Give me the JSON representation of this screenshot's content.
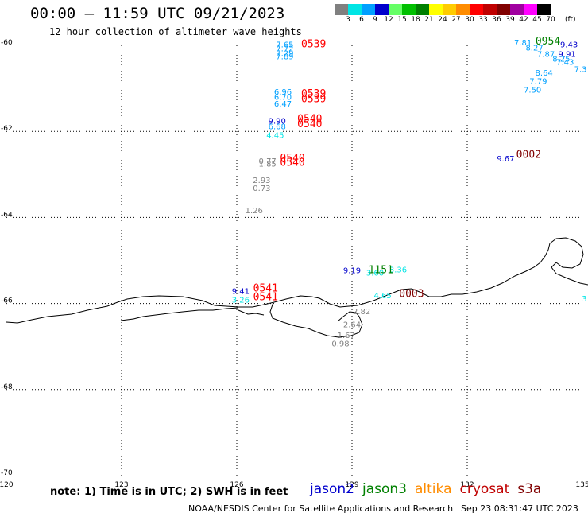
{
  "header": {
    "title": "00:00 – 11:59 UTC 09/21/2023",
    "subtitle": "12 hour collection of altimeter wave heights"
  },
  "legend": {
    "unit": "(ft)",
    "bins": [
      {
        "label": "3",
        "color": "#808080"
      },
      {
        "label": "6",
        "color": "#00e5e5"
      },
      {
        "label": "9",
        "color": "#00a0ff"
      },
      {
        "label": "12",
        "color": "#0000cc"
      },
      {
        "label": "15",
        "color": "#66ff66"
      },
      {
        "label": "18",
        "color": "#00c000"
      },
      {
        "label": "21",
        "color": "#008000"
      },
      {
        "label": "24",
        "color": "#ffff00"
      },
      {
        "label": "27",
        "color": "#ffcc00"
      },
      {
        "label": "30",
        "color": "#ff8c00"
      },
      {
        "label": "33",
        "color": "#ff0000"
      },
      {
        "label": "36",
        "color": "#c00000"
      },
      {
        "label": "39",
        "color": "#800000"
      },
      {
        "label": "42",
        "color": "#a000a0"
      },
      {
        "label": "45",
        "color": "#ff00ff"
      },
      {
        "label": "70",
        "color": "#000000"
      }
    ]
  },
  "map": {
    "lon_ticks": [
      "120",
      "123",
      "126",
      "129",
      "132",
      "135"
    ],
    "lat_ticks": [
      "-60",
      "-62",
      "-64",
      "-66",
      "-68",
      "-70"
    ],
    "observations": [
      {
        "t": "7.65",
        "c": "#00a0ff",
        "lon": 127.25,
        "lat": -60.05
      },
      {
        "t": "7.72",
        "c": "#00a0ff",
        "lon": 127.25,
        "lat": -60.14
      },
      {
        "t": "7.29",
        "c": "#00a0ff",
        "lon": 127.25,
        "lat": -60.25
      },
      {
        "t": "7.89",
        "c": "#00a0ff",
        "lon": 127.25,
        "lat": -60.32
      },
      {
        "t": "6.96",
        "c": "#00a0ff",
        "lon": 127.2,
        "lat": -61.15
      },
      {
        "t": "6.70",
        "c": "#00a0ff",
        "lon": 127.2,
        "lat": -61.27
      },
      {
        "t": "6.47",
        "c": "#00a0ff",
        "lon": 127.2,
        "lat": -61.42
      },
      {
        "t": "9.90",
        "c": "#0000cc",
        "lon": 127.05,
        "lat": -61.82
      },
      {
        "t": "6.68",
        "c": "#00a0ff",
        "lon": 127.05,
        "lat": -61.95
      },
      {
        "t": "4.45",
        "c": "#00e5e5",
        "lon": 127.0,
        "lat": -62.15
      },
      {
        "t": "0.77",
        "c": "#808080",
        "lon": 126.8,
        "lat": -62.75
      },
      {
        "t": "1.85",
        "c": "#808080",
        "lon": 126.8,
        "lat": -62.82
      },
      {
        "t": "2.93",
        "c": "#808080",
        "lon": 126.65,
        "lat": -63.2
      },
      {
        "t": "0.73",
        "c": "#808080",
        "lon": 126.65,
        "lat": -63.38
      },
      {
        "t": "1.26",
        "c": "#808080",
        "lon": 126.45,
        "lat": -63.9
      },
      {
        "t": "9.41",
        "c": "#0000cc",
        "lon": 126.1,
        "lat": -65.78
      },
      {
        "t": "3.26",
        "c": "#00e5e5",
        "lon": 126.1,
        "lat": -65.98
      },
      {
        "t": "9.19",
        "c": "#0000cc",
        "lon": 129.0,
        "lat": -65.3
      },
      {
        "t": "3.60",
        "c": "#00e5e5",
        "lon": 129.6,
        "lat": -65.35
      },
      {
        "t": "3.36",
        "c": "#00e5e5",
        "lon": 130.2,
        "lat": -65.28
      },
      {
        "t": "4.65",
        "c": "#00e5e5",
        "lon": 129.8,
        "lat": -65.88
      },
      {
        "t": "2.82",
        "c": "#808080",
        "lon": 129.25,
        "lat": -66.25
      },
      {
        "t": "2.64",
        "c": "#808080",
        "lon": 129.0,
        "lat": -66.55
      },
      {
        "t": "1.67",
        "c": "#808080",
        "lon": 128.85,
        "lat": -66.8
      },
      {
        "t": "0.98",
        "c": "#808080",
        "lon": 128.7,
        "lat": -67.0
      },
      {
        "t": "9.67",
        "c": "#0000cc",
        "lon": 133.0,
        "lat": -62.7
      },
      {
        "t": "7.81",
        "c": "#00a0ff",
        "lon": 133.45,
        "lat": -60.0
      },
      {
        "t": "8.27",
        "c": "#00a0ff",
        "lon": 133.75,
        "lat": -60.12
      },
      {
        "t": "9.43",
        "c": "#0000cc",
        "lon": 134.65,
        "lat": -60.05
      },
      {
        "t": "7.87",
        "c": "#00a0ff",
        "lon": 134.05,
        "lat": -60.27
      },
      {
        "t": "9.91",
        "c": "#0000cc",
        "lon": 134.6,
        "lat": -60.27
      },
      {
        "t": "8.25",
        "c": "#00a0ff",
        "lon": 134.45,
        "lat": -60.38
      },
      {
        "t": "7.43",
        "c": "#00a0ff",
        "lon": 134.55,
        "lat": -60.45
      },
      {
        "t": "7.3",
        "c": "#00a0ff",
        "lon": 134.95,
        "lat": -60.62
      },
      {
        "t": "8.64",
        "c": "#00a0ff",
        "lon": 134.0,
        "lat": -60.7
      },
      {
        "t": "7.79",
        "c": "#00a0ff",
        "lon": 133.85,
        "lat": -60.9
      },
      {
        "t": "7.50",
        "c": "#00a0ff",
        "lon": 133.7,
        "lat": -61.1
      },
      {
        "t": "3",
        "c": "#00e5e5",
        "lon": 135.05,
        "lat": -65.95
      }
    ],
    "times": [
      {
        "t": "0539",
        "c": "#ff0000",
        "lon": 128.0,
        "lat": -60.05
      },
      {
        "t": "0539",
        "c": "#ff0000",
        "lon": 128.0,
        "lat": -61.2
      },
      {
        "t": "0539",
        "c": "#ff0000",
        "lon": 128.0,
        "lat": -61.32
      },
      {
        "t": "0540",
        "c": "#ff0000",
        "lon": 127.9,
        "lat": -61.78
      },
      {
        "t": "0540",
        "c": "#ff0000",
        "lon": 127.9,
        "lat": -61.9
      },
      {
        "t": "0540",
        "c": "#ff0000",
        "lon": 127.45,
        "lat": -62.7
      },
      {
        "t": "0540",
        "c": "#ff0000",
        "lon": 127.45,
        "lat": -62.8
      },
      {
        "t": "0541",
        "c": "#ff0000",
        "lon": 126.75,
        "lat": -65.72
      },
      {
        "t": "0541",
        "c": "#ff0000",
        "lon": 126.75,
        "lat": -65.92
      },
      {
        "t": "1151",
        "c": "#008000",
        "lon": 129.75,
        "lat": -65.3
      },
      {
        "t": "0003",
        "c": "#800000",
        "lon": 130.55,
        "lat": -65.85
      },
      {
        "t": "0002",
        "c": "#800000",
        "lon": 133.6,
        "lat": -62.62
      },
      {
        "t": "0954",
        "c": "#008000",
        "lon": 134.1,
        "lat": -59.98
      }
    ]
  },
  "footer": {
    "note": "note: 1) Time is in UTC; 2) SWH is in feet",
    "satellites": [
      {
        "name": "jason2",
        "color": "#0000cc"
      },
      {
        "name": "jason3",
        "color": "#008000"
      },
      {
        "name": "altika",
        "color": "#ff8c00"
      },
      {
        "name": "cryosat",
        "color": "#c00000"
      },
      {
        "name": "s3a",
        "color": "#800000"
      }
    ],
    "credit": "NOAA/NESDIS Center for Satellite Applications and Research",
    "timestamp": "Sep 23 08:31:47 UTC 2023"
  }
}
